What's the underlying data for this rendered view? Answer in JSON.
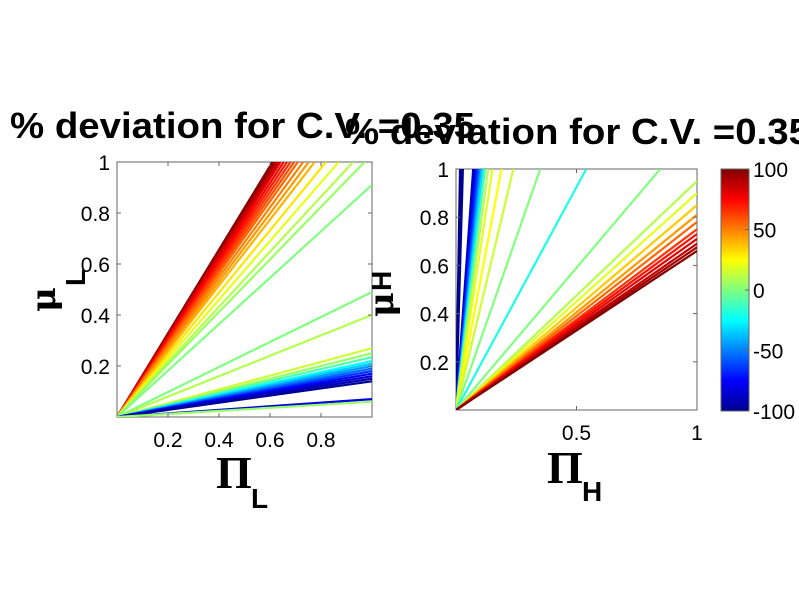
{
  "chart_data": [
    {
      "type": "contour",
      "title": "% deviation for C.V. =0.35",
      "xlabel": {
        "symbol": "Π",
        "subscript": "L"
      },
      "ylabel": {
        "symbol": "μ",
        "subscript": "L"
      },
      "xlim": [
        0,
        1
      ],
      "ylim": [
        0,
        1
      ],
      "xticks": [
        "0.2",
        "0.4",
        "0.6",
        "0.8"
      ],
      "xtick_values": [
        0.2,
        0.4,
        0.6,
        0.8
      ],
      "yticks": [
        "0.2",
        "0.4",
        "0.6",
        "0.8",
        "1"
      ],
      "ytick_values": [
        0.2,
        0.4,
        0.6,
        0.8,
        1
      ],
      "contour_lines_note_slope": "each contour is a ray from origin: μ = slope·Π",
      "contours": [
        {
          "level": 100,
          "slope": 1.64
        },
        {
          "level": 95,
          "slope": 1.62
        },
        {
          "level": 90,
          "slope": 1.6
        },
        {
          "level": 85,
          "slope": 1.58
        },
        {
          "level": 80,
          "slope": 1.56
        },
        {
          "level": 75,
          "slope": 1.53
        },
        {
          "level": 70,
          "slope": 1.5
        },
        {
          "level": 65,
          "slope": 1.47
        },
        {
          "level": 60,
          "slope": 1.44
        },
        {
          "level": 55,
          "slope": 1.41
        },
        {
          "level": 50,
          "slope": 1.37
        },
        {
          "level": 45,
          "slope": 1.33
        },
        {
          "level": 40,
          "slope": 1.29
        },
        {
          "level": 30,
          "slope": 1.22
        },
        {
          "level": 20,
          "slope": 1.15
        },
        {
          "level": 10,
          "slope": 1.08
        },
        {
          "level": 5,
          "slope": 1.03
        },
        {
          "level": 0,
          "slope": 0.91
        },
        {
          "level": 0,
          "slope": 0.49
        },
        {
          "level": 10,
          "slope": 0.4
        },
        {
          "level": 15,
          "slope": 0.27
        },
        {
          "level": 5,
          "slope": 0.25
        },
        {
          "level": -10,
          "slope": 0.235
        },
        {
          "level": -25,
          "slope": 0.22
        },
        {
          "level": -35,
          "slope": 0.21
        },
        {
          "level": -45,
          "slope": 0.2
        },
        {
          "level": -55,
          "slope": 0.19
        },
        {
          "level": -65,
          "slope": 0.18
        },
        {
          "level": -75,
          "slope": 0.17
        },
        {
          "level": -85,
          "slope": 0.16
        },
        {
          "level": -90,
          "slope": 0.15
        },
        {
          "level": -95,
          "slope": 0.14
        },
        {
          "level": -80,
          "slope": 0.07
        },
        {
          "level": 5,
          "slope": 0.06
        }
      ]
    },
    {
      "type": "contour",
      "title": "% deviation for C.V. =0.35",
      "xlabel": {
        "symbol": "Π",
        "subscript": "H"
      },
      "ylabel": {
        "symbol": "μ",
        "subscript": "H"
      },
      "xlim": [
        0,
        1
      ],
      "ylim": [
        0,
        1
      ],
      "xticks": [
        "0.5",
        "1"
      ],
      "xtick_values": [
        0.5,
        1
      ],
      "yticks": [
        "0.2",
        "0.4",
        "0.6",
        "0.8",
        "1"
      ],
      "ytick_values": [
        0.2,
        0.4,
        0.6,
        0.8,
        1
      ],
      "contours": [
        {
          "level": -100,
          "slope": 60
        },
        {
          "level": -100,
          "slope": 45
        },
        {
          "level": -95,
          "slope": 35
        },
        {
          "level": -90,
          "slope": 14
        },
        {
          "level": -85,
          "slope": 13
        },
        {
          "level": -80,
          "slope": 12.5
        },
        {
          "level": -75,
          "slope": 12
        },
        {
          "level": -70,
          "slope": 11.5
        },
        {
          "level": -65,
          "slope": 11
        },
        {
          "level": -60,
          "slope": 10.5
        },
        {
          "level": -50,
          "slope": 10
        },
        {
          "level": -40,
          "slope": 9.5
        },
        {
          "level": -30,
          "slope": 9
        },
        {
          "level": -10,
          "slope": 8.3
        },
        {
          "level": 10,
          "slope": 7.5
        },
        {
          "level": 20,
          "slope": 6.6
        },
        {
          "level": 25,
          "slope": 5.3
        },
        {
          "level": 15,
          "slope": 4.2
        },
        {
          "level": 0,
          "slope": 2.86
        },
        {
          "level": -20,
          "slope": 1.85
        },
        {
          "level": 0,
          "slope": 1.18
        },
        {
          "level": 10,
          "slope": 0.95
        },
        {
          "level": 20,
          "slope": 0.9
        },
        {
          "level": 35,
          "slope": 0.85
        },
        {
          "level": 45,
          "slope": 0.81
        },
        {
          "level": 55,
          "slope": 0.78
        },
        {
          "level": 65,
          "slope": 0.75
        },
        {
          "level": 72,
          "slope": 0.73
        },
        {
          "level": 80,
          "slope": 0.71
        },
        {
          "level": 87,
          "slope": 0.69
        },
        {
          "level": 93,
          "slope": 0.675
        },
        {
          "level": 100,
          "slope": 0.66
        }
      ]
    }
  ],
  "colorbar": {
    "colormap": "jet",
    "range": [
      -100,
      100
    ],
    "ticks": [
      "100",
      "50",
      "0",
      "-50",
      "-100"
    ],
    "tick_values": [
      100,
      50,
      0,
      -50,
      -100
    ]
  }
}
